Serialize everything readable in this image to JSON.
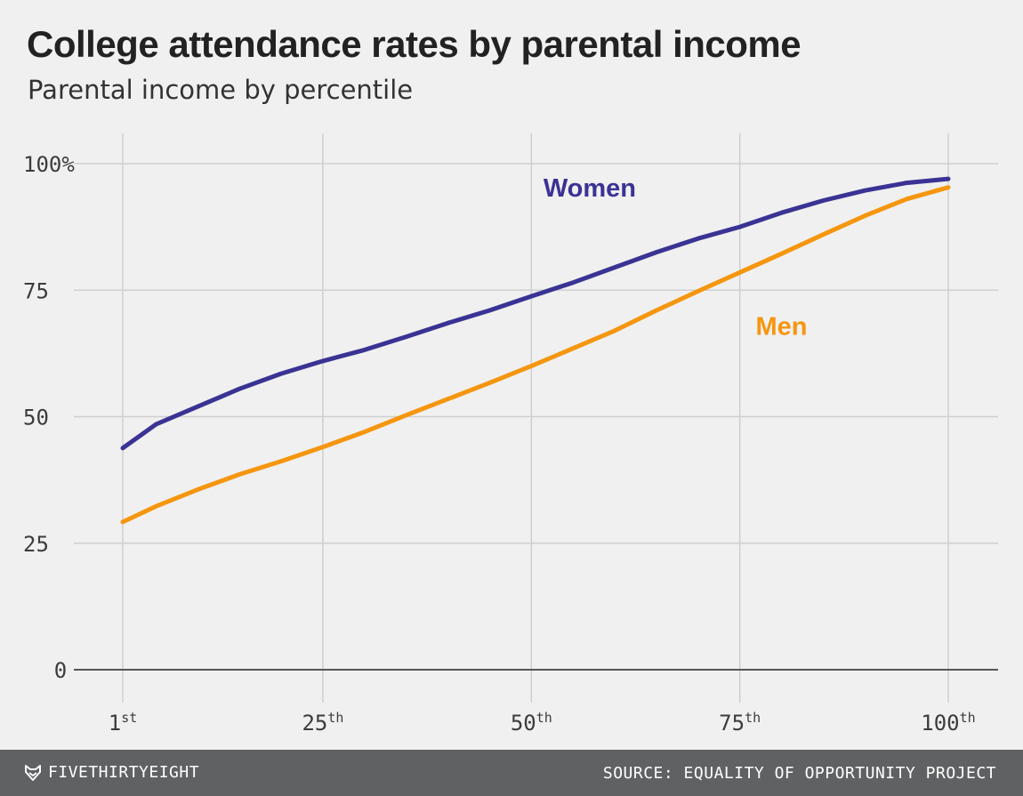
{
  "header": {
    "title": "College attendance rates by parental income",
    "subtitle": "Parental income by percentile"
  },
  "footer": {
    "brand": "FIVETHIRTYEIGHT",
    "brand_icon": "fivethirtyeight-fox-icon",
    "source": "SOURCE: EQUALITY OF OPPORTUNITY PROJECT"
  },
  "chart_data": {
    "type": "line",
    "title": "College attendance rates by parental income",
    "subtitle": "Parental income by percentile",
    "xlabel": "",
    "ylabel": "",
    "xlim": [
      1,
      100
    ],
    "ylim": [
      0,
      100
    ],
    "grid": true,
    "x_ticks": [
      {
        "value": 1,
        "num": "1",
        "suffix": "st"
      },
      {
        "value": 25,
        "num": "25",
        "suffix": "th"
      },
      {
        "value": 50,
        "num": "50",
        "suffix": "th"
      },
      {
        "value": 75,
        "num": "75",
        "suffix": "th"
      },
      {
        "value": 100,
        "num": "100",
        "suffix": "th"
      }
    ],
    "y_ticks": [
      {
        "value": 0,
        "label": "0"
      },
      {
        "value": 25,
        "label": "25"
      },
      {
        "value": 50,
        "label": "50"
      },
      {
        "value": 75,
        "label": "75"
      },
      {
        "value": 100,
        "label": "100%"
      }
    ],
    "x": [
      1,
      5,
      10,
      15,
      20,
      25,
      30,
      35,
      40,
      45,
      50,
      55,
      60,
      65,
      70,
      75,
      80,
      85,
      90,
      95,
      100
    ],
    "series": [
      {
        "name": "Women",
        "color": "#3a3394",
        "label_at": {
          "x": 57,
          "y": 93.5
        },
        "values": [
          43.8,
          48.5,
          52,
          55.5,
          58.5,
          61,
          63.2,
          65.8,
          68.5,
          71,
          73.8,
          76.5,
          79.5,
          82.5,
          85.2,
          87.5,
          90.3,
          92.7,
          94.7,
          96.2,
          97
        ]
      },
      {
        "name": "Men",
        "color": "#f5960f",
        "label_at": {
          "x": 80,
          "y": 66.2
        },
        "values": [
          29.2,
          32.3,
          35.6,
          38.6,
          41.2,
          44,
          47,
          50.3,
          53.5,
          56.7,
          60,
          63.5,
          67,
          71,
          74.8,
          78.5,
          82.2,
          86,
          89.7,
          93,
          95.3
        ]
      }
    ]
  }
}
